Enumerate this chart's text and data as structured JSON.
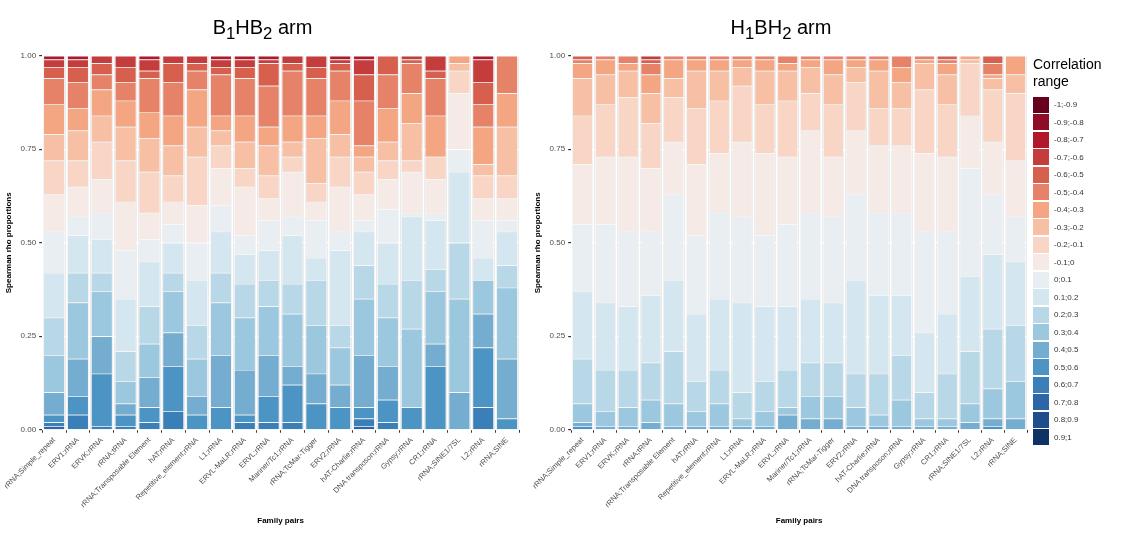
{
  "chart_data": [
    {
      "type": "bar",
      "title": "B$_{1}$HB$_{2}$ arm",
      "xlabel": "Family pairs",
      "ylabel": "Spearman rho proportions",
      "stacked": true,
      "grid": true,
      "categories": [
        "rRNA;Simple_repeat",
        "ERV1;rRNA",
        "ERVK;rRNA",
        "rRNA;tRNA",
        "rRNA;Transposable Element",
        "hAT;rRNA",
        "Repetitive_element;rRNA",
        "L1;rRNA",
        "ERVL-MaLR;rRNA",
        "ERVL;rRNA",
        "Mariner/Tc1;rRNA",
        "rRNA;TcMar-Tigger",
        "ERV2;rRNA",
        "hAT-Charlie;rRNA",
        "DNA transposon;rRNA",
        "Gypsy;rRNA",
        "CR1;rRNA",
        "rRNA;SINE1/7SL",
        "L2;rRNA",
        "rRNA;SINE"
      ],
      "ylim": [
        0,
        1
      ],
      "yticks": [
        {
          "value": 0,
          "label": "0.00"
        },
        {
          "value": 0.25,
          "label": "0.25"
        },
        {
          "value": 0.5,
          "label": "0.50"
        },
        {
          "value": 0.75,
          "label": "0.75"
        },
        {
          "value": 1,
          "label": "1.00"
        }
      ],
      "series": [
        {
          "color": "#0f3163",
          "values": [
            0,
            0,
            0,
            0,
            0,
            0,
            0,
            0,
            0,
            0,
            0,
            0,
            0,
            0,
            0,
            0,
            0,
            0,
            0,
            0
          ]
        },
        {
          "color": "#1f4e8c",
          "values": [
            0,
            0,
            0,
            0,
            0,
            0,
            0,
            0,
            0,
            0,
            0,
            0,
            0,
            0,
            0,
            0,
            0,
            0,
            0,
            0
          ]
        },
        {
          "color": "#2c65a8",
          "values": [
            0.01,
            0,
            0,
            0,
            0,
            0,
            0,
            0,
            0,
            0,
            0,
            0,
            0,
            0.01,
            0,
            0,
            0,
            0,
            0,
            0
          ]
        },
        {
          "color": "#3a7fb7",
          "values": [
            0.01,
            0.04,
            0.01,
            0.01,
            0.02,
            0.05,
            0,
            0,
            0.02,
            0.02,
            0.02,
            0,
            0,
            0.02,
            0.02,
            0,
            0,
            0,
            0.06,
            0
          ]
        },
        {
          "color": "#4b94c4",
          "values": [
            0.02,
            0.05,
            0.14,
            0.03,
            0.04,
            0.12,
            0.04,
            0.06,
            0.02,
            0.07,
            0.1,
            0.07,
            0.06,
            0.03,
            0.06,
            0.06,
            0.17,
            0,
            0.16,
            0.03
          ]
        },
        {
          "color": "#74adcf",
          "values": [
            0.06,
            0.1,
            0.1,
            0.03,
            0.08,
            0.09,
            0.05,
            0.14,
            0.12,
            0.11,
            0.05,
            0.08,
            0.06,
            0.14,
            0.09,
            0,
            0.06,
            0.1,
            0.09,
            0.16
          ]
        },
        {
          "color": "#9bc8de",
          "values": [
            0.1,
            0.15,
            0.12,
            0.06,
            0.09,
            0.11,
            0.1,
            0.14,
            0.14,
            0.13,
            0.14,
            0.13,
            0.1,
            0.15,
            0.13,
            0.21,
            0.14,
            0.25,
            0.09,
            0.19
          ]
        },
        {
          "color": "#b8d8e8",
          "values": [
            0.1,
            0.08,
            0.05,
            0.08,
            0.1,
            0.05,
            0.09,
            0.08,
            0.09,
            0.07,
            0.08,
            0.12,
            0.06,
            0.09,
            0.09,
            0.13,
            0.06,
            0.15,
            0,
            0.06
          ]
        },
        {
          "color": "#d4e6f0",
          "values": [
            0.12,
            0.1,
            0.09,
            0.14,
            0.12,
            0.08,
            0.12,
            0.11,
            0.08,
            0.08,
            0.13,
            0.06,
            0.2,
            0.09,
            0.11,
            0.17,
            0.13,
            0.19,
            0.06,
            0.09
          ]
        },
        {
          "color": "#e8eef2",
          "values": [
            0.11,
            0.05,
            0.07,
            0.13,
            0.06,
            0.05,
            0.1,
            0.07,
            0.05,
            0.08,
            0.05,
            0.1,
            0.05,
            0.03,
            0.09,
            0.01,
            0.02,
            0.06,
            0.1,
            0.03
          ]
        },
        {
          "color": "#f5eae6",
          "values": [
            0.1,
            0.08,
            0.09,
            0.13,
            0.07,
            0.06,
            0.1,
            0.1,
            0.13,
            0.06,
            0.12,
            0.05,
            0.12,
            0.07,
            0.08,
            0.11,
            0.09,
            0.15,
            0.06,
            0.06
          ]
        },
        {
          "color": "#f8d5c4",
          "values": [
            0.09,
            0.07,
            0.1,
            0.11,
            0.11,
            0.07,
            0.13,
            0.06,
            0.05,
            0.06,
            0.04,
            0.05,
            0.08,
            0.06,
            0.05,
            0.03,
            0.06,
            0.06,
            0.06,
            0.06
          ]
        },
        {
          "color": "#f7bfa4",
          "values": [
            0.07,
            0.08,
            0.07,
            0.09,
            0.09,
            0.08,
            0.08,
            0.04,
            0.07,
            0.08,
            0.04,
            0.12,
            0.06,
            0.04,
            0.05,
            0.1,
            0,
            0.02,
            0.03,
            0.13
          ]
        },
        {
          "color": "#f4a582",
          "values": [
            0.08,
            0.06,
            0.07,
            0.07,
            0.07,
            0.08,
            0.1,
            0.04,
            0.07,
            0.05,
            0.07,
            0.06,
            0.09,
            0.03,
            0.09,
            0.08,
            0.11,
            0.02,
            0.1,
            0.09
          ]
        },
        {
          "color": "#e58267",
          "values": [
            0.07,
            0.07,
            0.04,
            0.05,
            0.09,
            0.09,
            0.05,
            0.11,
            0.1,
            0.11,
            0.12,
            0.1,
            0.08,
            0.12,
            0.09,
            0.08,
            0.1,
            0,
            0.06,
            0.1
          ]
        },
        {
          "color": "#d6604d",
          "values": [
            0.03,
            0.04,
            0.03,
            0.04,
            0.02,
            0.05,
            0.02,
            0.02,
            0.03,
            0.06,
            0.02,
            0.03,
            0.02,
            0.07,
            0.05,
            0.01,
            0.02,
            0,
            0.06,
            0
          ]
        },
        {
          "color": "#c43c3c",
          "values": [
            0.02,
            0.02,
            0.02,
            0.03,
            0.03,
            0.02,
            0.02,
            0.02,
            0.02,
            0.01,
            0.02,
            0.03,
            0.01,
            0.04,
            0,
            0.01,
            0.04,
            0,
            0.06,
            0
          ]
        },
        {
          "color": "#b2182b",
          "values": [
            0.01,
            0.01,
            0,
            0,
            0.01,
            0,
            0,
            0.01,
            0.01,
            0.01,
            0,
            0,
            0.01,
            0.01,
            0,
            0,
            0,
            0,
            0.01,
            0
          ]
        },
        {
          "color": "#8e0c25",
          "values": [
            0,
            0,
            0,
            0,
            0,
            0,
            0,
            0,
            0,
            0,
            0,
            0,
            0,
            0,
            0,
            0,
            0,
            0,
            0,
            0
          ]
        },
        {
          "color": "#67001f",
          "values": [
            0,
            0,
            0,
            0,
            0,
            0,
            0,
            0,
            0,
            0,
            0,
            0,
            0,
            0,
            0,
            0,
            0,
            0,
            0,
            0
          ]
        }
      ]
    },
    {
      "type": "bar",
      "title": "H$_{1}$BH$_{2}$ arm",
      "xlabel": "Family pairs",
      "ylabel": "Spearman rho proportions",
      "stacked": true,
      "grid": true,
      "legend": "right",
      "legend_title": "Correlation range",
      "categories": [
        "rRNA;Simple_repeat",
        "ERV1;rRNA",
        "ERVK;rRNA",
        "rRNA;tRNA",
        "rRNA;Transposable Element",
        "hAT;rRNA",
        "Repetitive_element;rRNA",
        "L1;rRNA",
        "ERVL-MaLR;rRNA",
        "ERVL;rRNA",
        "Mariner/Tc1;rRNA",
        "rRNA;TcMar-Tigger",
        "ERV2;rRNA",
        "hAT-Charlie;rRNA",
        "DNA transposon;rRNA",
        "Gypsy;rRNA",
        "CR1;rRNA",
        "rRNA;SINE1/7SL",
        "L2;rRNA",
        "rRNA;SINE"
      ],
      "ylim": [
        0,
        1
      ],
      "yticks": [
        {
          "value": 0,
          "label": "0.00"
        },
        {
          "value": 0.25,
          "label": "0.25"
        },
        {
          "value": 0.5,
          "label": "0.50"
        },
        {
          "value": 0.75,
          "label": "0.75"
        },
        {
          "value": 1,
          "label": "1.00"
        }
      ],
      "series": [
        {
          "name": "0.9;1",
          "color": "#0f3163",
          "values": [
            0,
            0,
            0,
            0,
            0,
            0,
            0,
            0,
            0,
            0,
            0,
            0,
            0,
            0,
            0,
            0,
            0,
            0,
            0,
            0
          ]
        },
        {
          "name": "0.8;0.9",
          "color": "#1f4e8c",
          "values": [
            0,
            0,
            0,
            0,
            0,
            0,
            0,
            0,
            0,
            0,
            0,
            0,
            0,
            0,
            0,
            0,
            0,
            0,
            0,
            0
          ]
        },
        {
          "name": "0.7;0.8",
          "color": "#2c65a8",
          "values": [
            0,
            0,
            0,
            0,
            0,
            0,
            0,
            0,
            0,
            0,
            0,
            0,
            0,
            0,
            0,
            0,
            0,
            0,
            0,
            0
          ]
        },
        {
          "name": "0.6;0.7",
          "color": "#3a7fb7",
          "values": [
            0,
            0,
            0,
            0,
            0,
            0,
            0,
            0,
            0,
            0,
            0,
            0,
            0,
            0,
            0,
            0,
            0,
            0,
            0,
            0
          ]
        },
        {
          "name": "0.5;0.6",
          "color": "#4b94c4",
          "values": [
            0.01,
            0,
            0,
            0,
            0,
            0,
            0,
            0,
            0,
            0,
            0,
            0,
            0,
            0,
            0,
            0,
            0,
            0,
            0.01,
            0
          ]
        },
        {
          "name": "0.4;0.5",
          "color": "#74adcf",
          "values": [
            0.01,
            0.01,
            0.01,
            0.02,
            0.01,
            0.01,
            0.01,
            0.01,
            0.01,
            0.04,
            0.03,
            0.03,
            0.01,
            0.01,
            0.01,
            0.01,
            0.01,
            0.02,
            0.02,
            0.03
          ]
        },
        {
          "name": "0.3;0.4",
          "color": "#9bc8de",
          "values": [
            0.05,
            0.04,
            0.05,
            0.06,
            0.06,
            0.04,
            0.06,
            0.02,
            0.04,
            0.02,
            0.06,
            0.06,
            0.05,
            0.03,
            0.07,
            0.02,
            0.02,
            0.05,
            0.08,
            0.1
          ]
        },
        {
          "name": "0.2;0.3",
          "color": "#b8d8e8",
          "values": [
            0.12,
            0.11,
            0.1,
            0.1,
            0.14,
            0.08,
            0.09,
            0.07,
            0.08,
            0.1,
            0.09,
            0.09,
            0.09,
            0.11,
            0.12,
            0.07,
            0.12,
            0.14,
            0.16,
            0.15
          ]
        },
        {
          "name": "0.1;0.2",
          "color": "#d4e6f0",
          "values": [
            0.18,
            0.18,
            0.17,
            0.18,
            0.19,
            0.18,
            0.19,
            0.24,
            0.2,
            0.17,
            0.17,
            0.16,
            0.25,
            0.21,
            0.16,
            0.16,
            0.16,
            0.2,
            0.2,
            0.17
          ]
        },
        {
          "name": "0;0.1",
          "color": "#e8eef2",
          "values": [
            0.18,
            0.21,
            0.2,
            0.17,
            0.23,
            0.21,
            0.23,
            0.23,
            0.19,
            0.22,
            0.23,
            0.23,
            0.23,
            0.22,
            0.22,
            0.27,
            0.22,
            0.29,
            0.16,
            0.12
          ]
        },
        {
          "name": "-0.1;0",
          "color": "#f5eae6",
          "values": [
            0.16,
            0.18,
            0.2,
            0.17,
            0.14,
            0.19,
            0.16,
            0.2,
            0.22,
            0.18,
            0.22,
            0.16,
            0.17,
            0.18,
            0.18,
            0.21,
            0.2,
            0.14,
            0.14,
            0.15
          ]
        },
        {
          "name": "-0.2;-0.1",
          "color": "#f8d5c4",
          "values": [
            0.13,
            0.14,
            0.16,
            0.12,
            0.12,
            0.15,
            0.14,
            0.15,
            0.13,
            0.15,
            0.1,
            0.14,
            0.13,
            0.1,
            0.1,
            0.17,
            0.14,
            0.14,
            0.14,
            0.18
          ]
        },
        {
          "name": "-0.3;-0.2",
          "color": "#f7bfa4",
          "values": [
            0.1,
            0.08,
            0.07,
            0.08,
            0.05,
            0.1,
            0.08,
            0.05,
            0.09,
            0.08,
            0.07,
            0.08,
            0.04,
            0.1,
            0.07,
            0.07,
            0.08,
            0.01,
            0.03,
            0.05
          ]
        },
        {
          "name": "-0.4;-0.3",
          "color": "#f4a582",
          "values": [
            0.04,
            0.04,
            0.02,
            0.05,
            0.05,
            0.03,
            0.03,
            0.02,
            0.03,
            0.02,
            0.02,
            0.04,
            0.02,
            0.03,
            0.04,
            0.01,
            0.03,
            0.01,
            0.01,
            0.05
          ]
        },
        {
          "name": "-0.5;-0.4",
          "color": "#e58267",
          "values": [
            0.01,
            0.01,
            0.02,
            0.03,
            0.01,
            0.01,
            0.01,
            0.01,
            0.01,
            0.02,
            0.01,
            0.01,
            0.01,
            0.01,
            0.03,
            0.01,
            0.01,
            0,
            0.03,
            0
          ]
        },
        {
          "name": "-0.6;-0.5",
          "color": "#d6604d",
          "values": [
            0.01,
            0,
            0,
            0.01,
            0,
            0,
            0,
            0,
            0,
            0,
            0,
            0,
            0,
            0,
            0,
            0,
            0.01,
            0,
            0.02,
            0
          ]
        },
        {
          "name": "-0.7;-0.6",
          "color": "#c43c3c",
          "values": [
            0,
            0,
            0,
            0.01,
            0,
            0,
            0,
            0,
            0,
            0,
            0,
            0,
            0,
            0,
            0,
            0,
            0,
            0,
            0,
            0
          ]
        },
        {
          "name": "-0.8;-0.7",
          "color": "#b2182b",
          "values": [
            0,
            0,
            0,
            0,
            0,
            0,
            0,
            0,
            0,
            0,
            0,
            0,
            0,
            0,
            0,
            0,
            0,
            0,
            0,
            0
          ]
        },
        {
          "name": "-0.9;-0.8",
          "color": "#8e0c25",
          "values": [
            0,
            0,
            0,
            0,
            0,
            0,
            0,
            0,
            0,
            0,
            0,
            0,
            0,
            0,
            0,
            0,
            0,
            0,
            0,
            0
          ]
        },
        {
          "name": "-1;-0.9",
          "color": "#67001f",
          "values": [
            0,
            0,
            0,
            0,
            0,
            0,
            0,
            0,
            0,
            0,
            0,
            0,
            0,
            0,
            0,
            0,
            0,
            0,
            0,
            0
          ]
        }
      ]
    }
  ]
}
